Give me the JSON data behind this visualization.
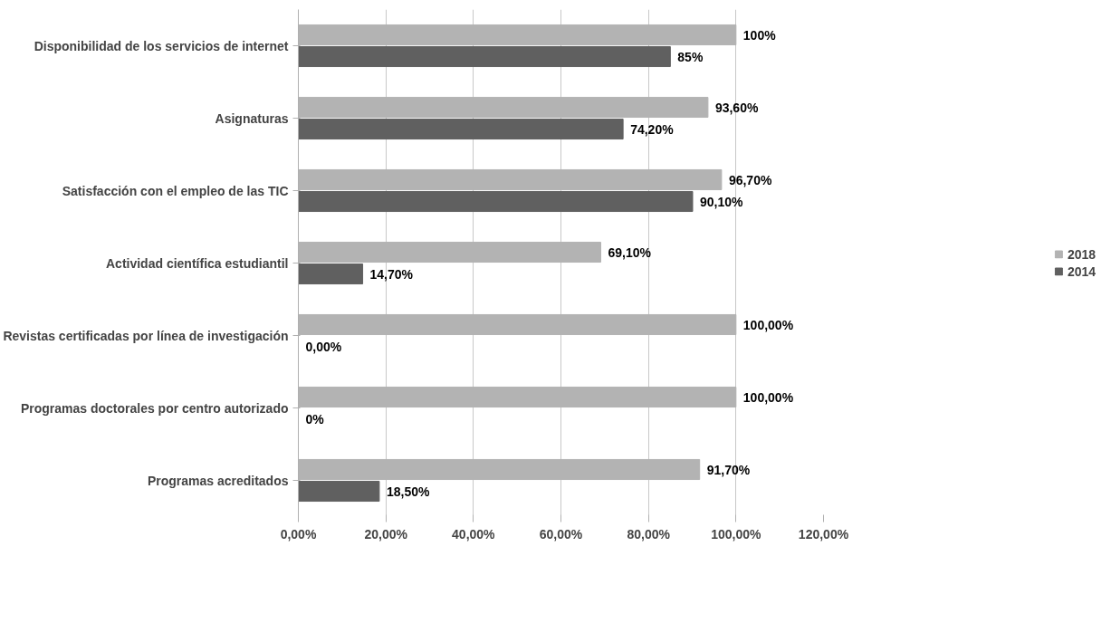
{
  "chart_data": {
    "type": "bar",
    "orientation": "horizontal",
    "categories": [
      "Disponibilidad de los servicios de internet",
      "Asignaturas",
      "Satisfacción con el empleo de las TIC",
      "Actividad científica estudiantil",
      "Revistas certificadas por línea de investigación",
      "Programas doctorales por centro autorizado",
      "Programas acreditados"
    ],
    "series": [
      {
        "name": "2018",
        "color": "#b3b3b3",
        "values": [
          100,
          93.6,
          96.7,
          69.1,
          100,
          100,
          91.7
        ],
        "value_labels": [
          "100%",
          "93,60%",
          "96,70%",
          "69,10%",
          "100,00%",
          "100,00%",
          "91,70%"
        ]
      },
      {
        "name": "2014",
        "color": "#606060",
        "values": [
          85,
          74.2,
          90.1,
          14.7,
          0,
          0,
          18.5
        ],
        "value_labels": [
          "85%",
          "74,20%",
          "90,10%",
          "14,70%",
          "0,00%",
          "0%",
          "18,50%"
        ]
      }
    ],
    "xlim": [
      0,
      120
    ],
    "xticks": [
      {
        "value": 0,
        "label": "0,00%"
      },
      {
        "value": 20,
        "label": "20,00%"
      },
      {
        "value": 40,
        "label": "40,00%"
      },
      {
        "value": 60,
        "label": "60,00%"
      },
      {
        "value": 80,
        "label": "80,00%"
      },
      {
        "value": 100,
        "label": "100,00%"
      },
      {
        "value": 120,
        "label": "120,00%"
      }
    ],
    "grid": "x",
    "legend": "right"
  }
}
